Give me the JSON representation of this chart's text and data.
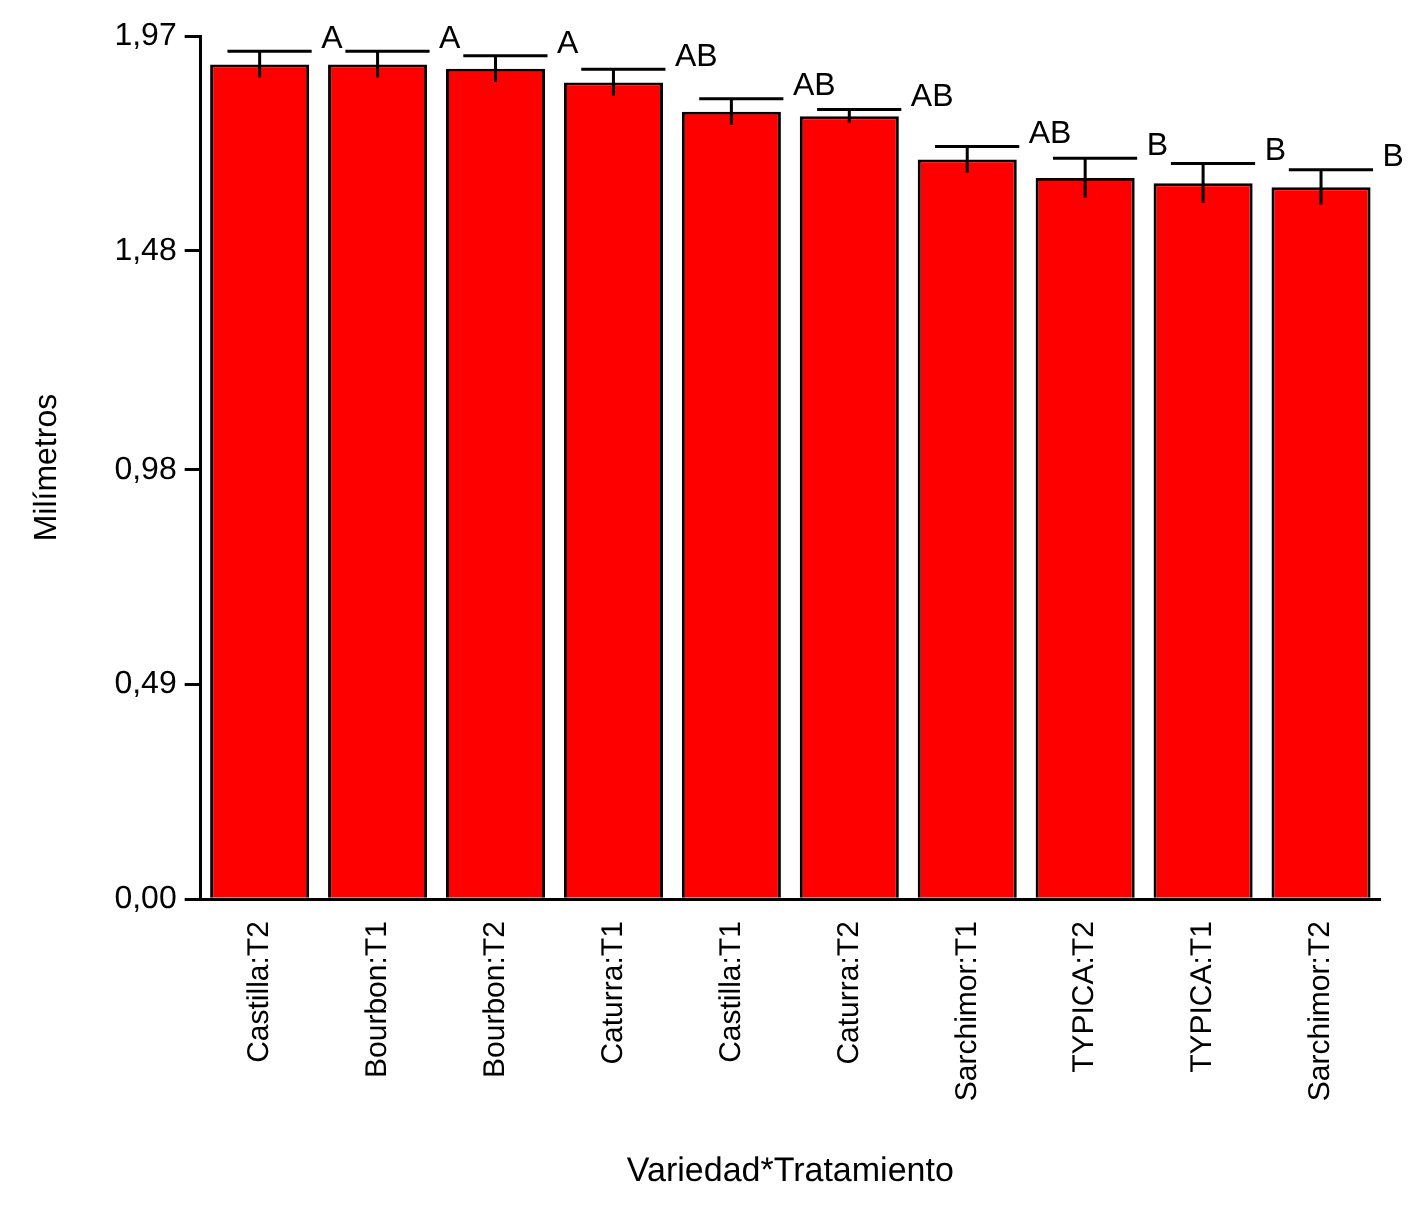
{
  "chart_data": {
    "type": "bar",
    "xlabel": "Variedad*Tratamiento",
    "ylabel": "Milímetros",
    "categories": [
      "Castilla:T2",
      "Bourbon:T1",
      "Bourbon:T2",
      "Caturra:T1",
      "Castilla:T1",
      "Caturra:T2",
      "Sarchimor:T1",
      "TYPICA:T2",
      "TYPICA:T1",
      "Sarchimor:T2"
    ],
    "values": [
      1.905,
      1.905,
      1.895,
      1.864,
      1.797,
      1.787,
      1.688,
      1.646,
      1.634,
      1.625
    ],
    "errors": [
      0.03,
      0.03,
      0.03,
      0.03,
      0.03,
      0.015,
      0.03,
      0.045,
      0.045,
      0.04
    ],
    "color": "#ff0000",
    "ylim": [
      0,
      1.97
    ],
    "yticks": [
      {
        "value": 0,
        "label": "0,00"
      },
      {
        "value": 0.49,
        "label": "0,49"
      },
      {
        "value": 0.98,
        "label": "0,98"
      },
      {
        "value": 1.48,
        "label": "1,48"
      },
      {
        "value": 1.97,
        "label": "1,97"
      }
    ],
    "grid": false,
    "legend": false,
    "annotations": [
      {
        "text": "A",
        "x": "Castilla:T2",
        "y": 1.935
      },
      {
        "text": "A",
        "x": "Bourbon:T1",
        "y": 1.935
      },
      {
        "text": "A",
        "x": "Bourbon:T2",
        "y": 1.925
      },
      {
        "text": "AB",
        "x": "Caturra:T1",
        "y": 1.894
      },
      {
        "text": "AB",
        "x": "Castilla:T1",
        "y": 1.827
      },
      {
        "text": "AB",
        "x": "Caturra:T2",
        "y": 1.802
      },
      {
        "text": "AB",
        "x": "Sarchimor:T1",
        "y": 1.718
      },
      {
        "text": "B",
        "x": "TYPICA:T2",
        "y": 1.691
      },
      {
        "text": "B",
        "x": "TYPICA:T1",
        "y": 1.679
      },
      {
        "text": "B",
        "x": "Sarchimor:T2",
        "y": 1.665
      }
    ]
  }
}
